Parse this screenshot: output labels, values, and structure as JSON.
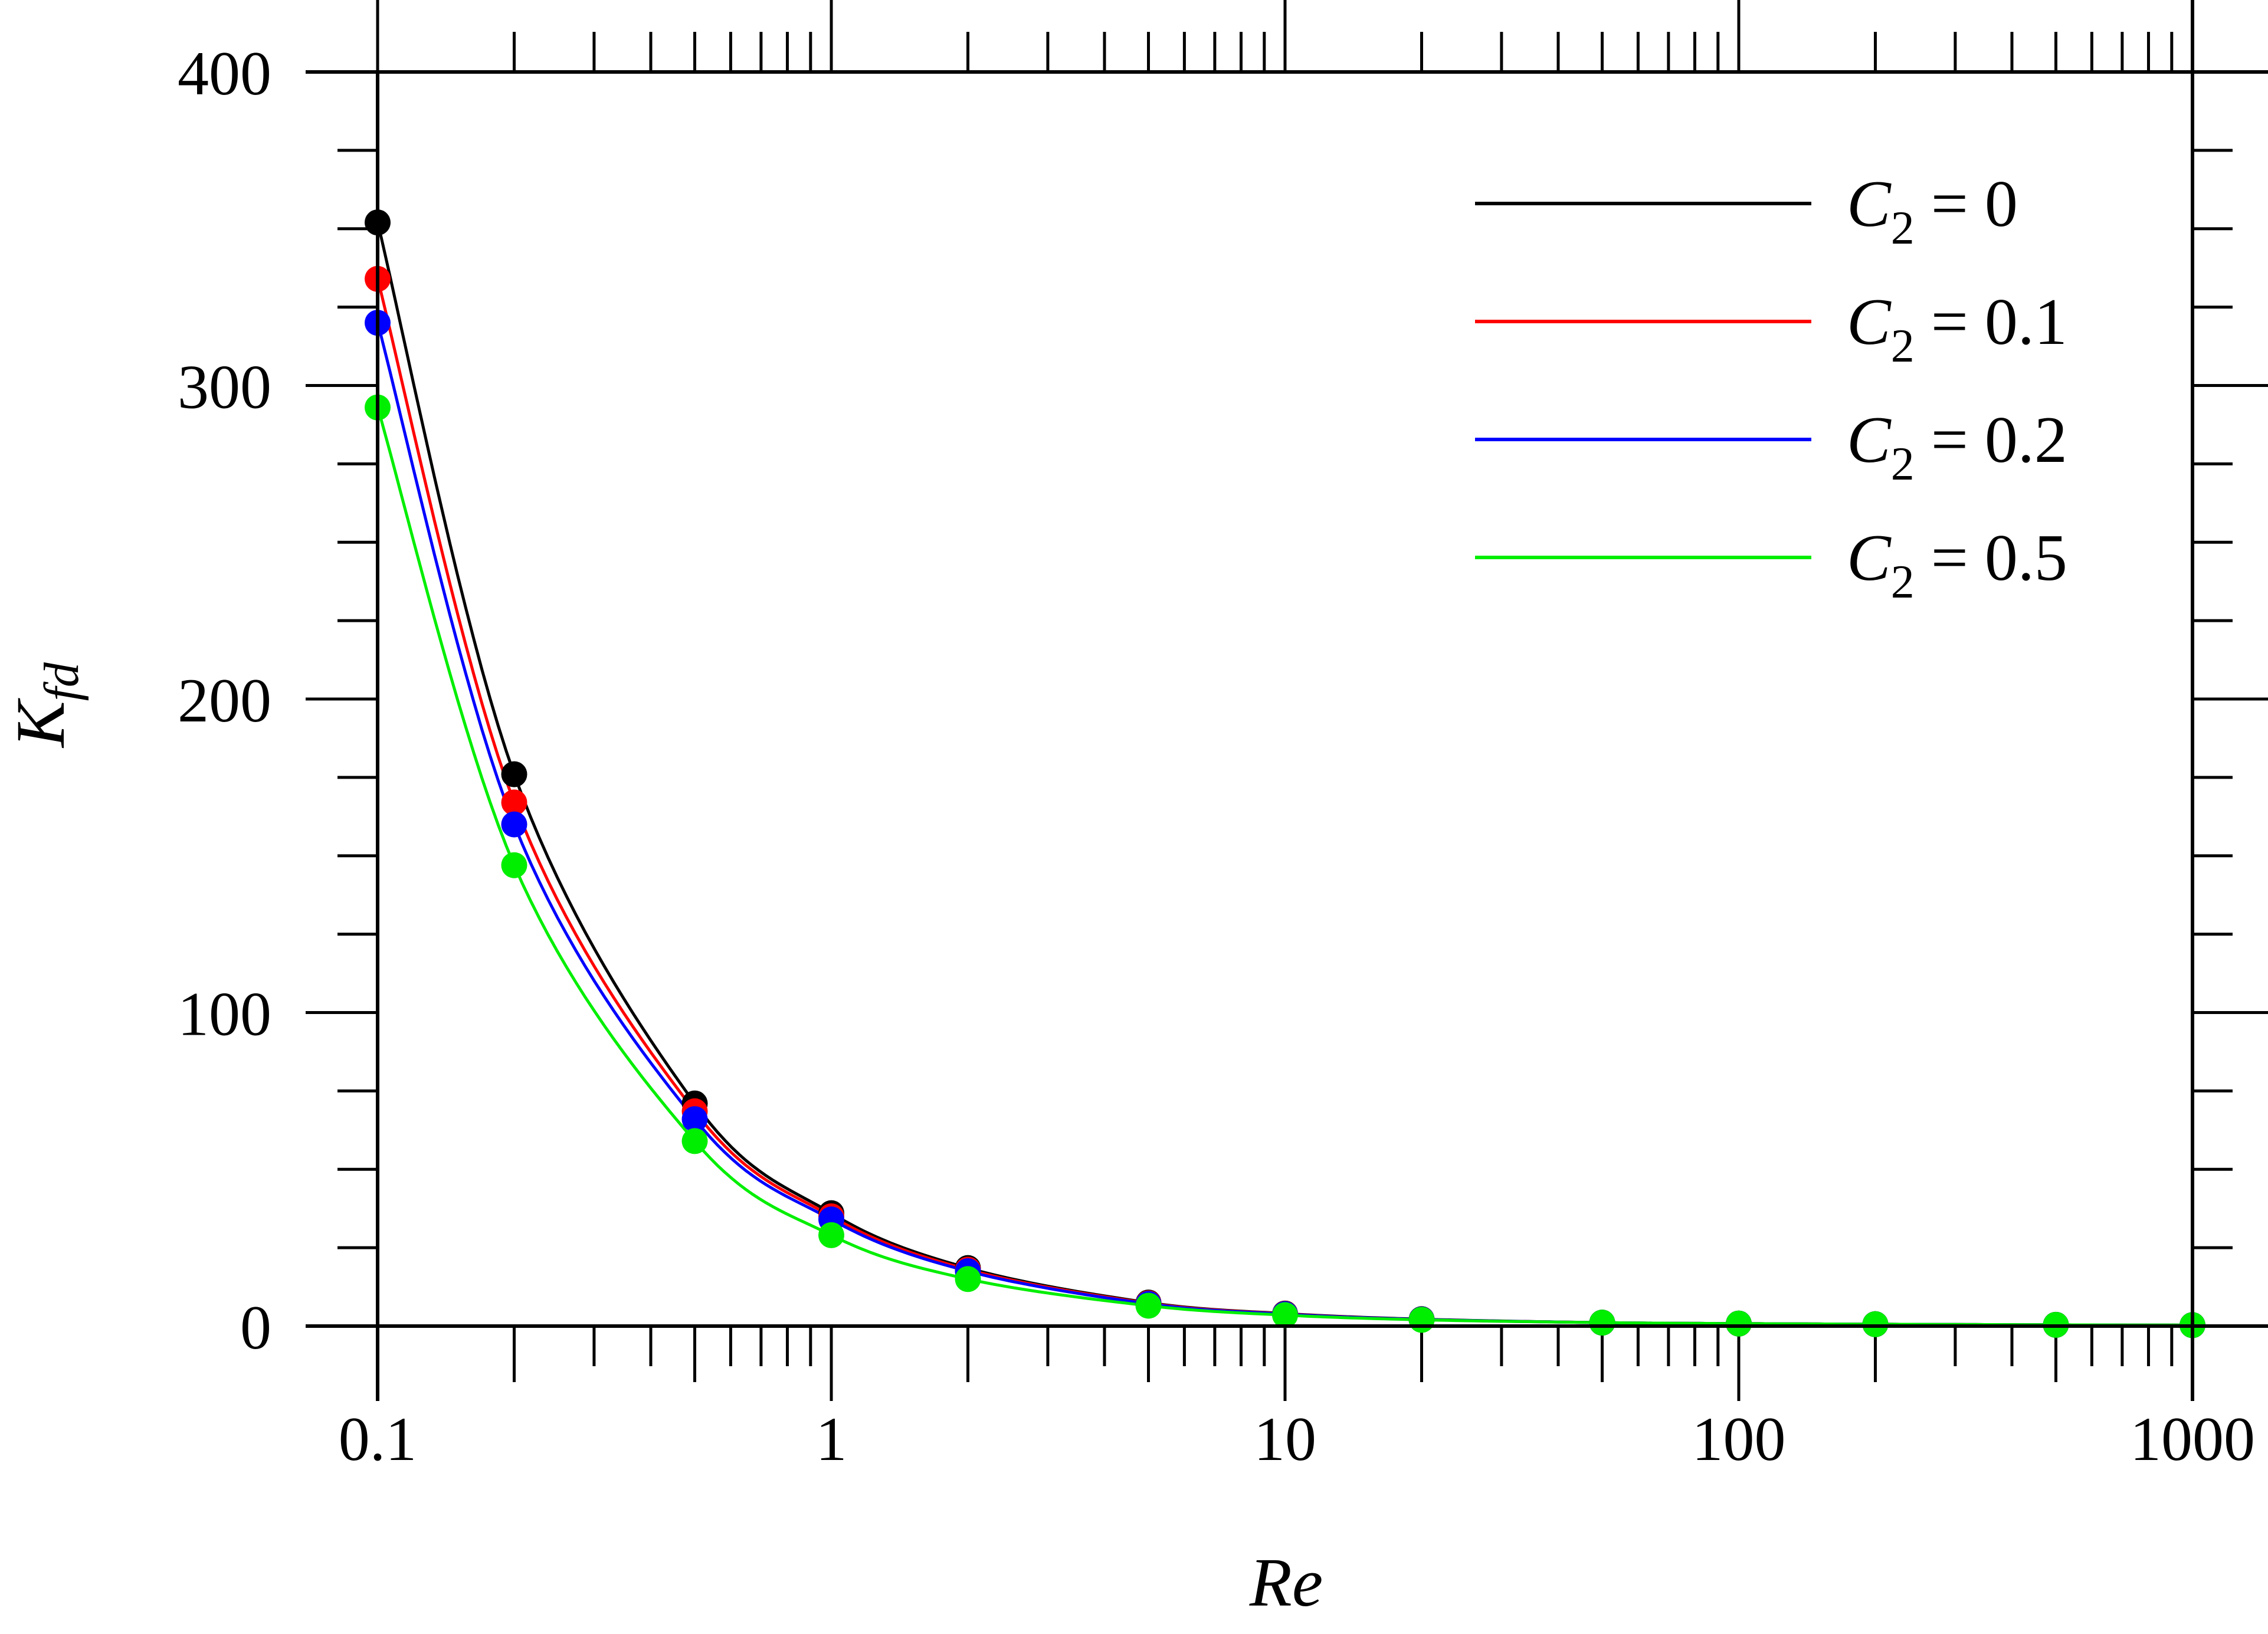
{
  "chart_data": {
    "type": "line",
    "xlabel": "Re",
    "ylabel": {
      "main": "K",
      "sub": "fd"
    },
    "x_scale": "log",
    "xlim": [
      0.1,
      1000
    ],
    "ylim": [
      0,
      400
    ],
    "x_tick_labels": [
      "0.1",
      "1",
      "10",
      "100",
      "1000"
    ],
    "y_tick_labels": [
      "0",
      "100",
      "200",
      "300",
      "400"
    ],
    "grid": false,
    "legend_position": "top-right",
    "series": [
      {
        "name": "C2 = 0",
        "legend": {
          "main": "C",
          "sub": "2",
          "rest": " = 0"
        },
        "color": "#000000",
        "points": [
          [
            0.1,
            352
          ],
          [
            0.2,
            176
          ],
          [
            0.5,
            71
          ],
          [
            1,
            36
          ],
          [
            2,
            18.5
          ],
          [
            5,
            7.5
          ],
          [
            10,
            4
          ],
          [
            20,
            2.2
          ],
          [
            50,
            1.1
          ],
          [
            100,
            0.8
          ],
          [
            200,
            0.6
          ],
          [
            500,
            0.4
          ],
          [
            1000,
            0.3
          ]
        ]
      },
      {
        "name": "C2 = 0.1",
        "legend": {
          "main": "C",
          "sub": "2",
          "rest": " = 0.1"
        },
        "color": "#ff0000",
        "points": [
          [
            0.1,
            334
          ],
          [
            0.2,
            167
          ],
          [
            0.5,
            68.5
          ],
          [
            1,
            35
          ],
          [
            2,
            18
          ],
          [
            5,
            7.3
          ],
          [
            10,
            3.9
          ],
          [
            20,
            2.1
          ],
          [
            50,
            1.1
          ],
          [
            100,
            0.8
          ],
          [
            200,
            0.6
          ],
          [
            500,
            0.4
          ],
          [
            1000,
            0.3
          ]
        ]
      },
      {
        "name": "C2 = 0.2",
        "legend": {
          "main": "C",
          "sub": "2",
          "rest": " = 0.2"
        },
        "color": "#0000ff",
        "points": [
          [
            0.1,
            320
          ],
          [
            0.2,
            160
          ],
          [
            0.5,
            66
          ],
          [
            1,
            34
          ],
          [
            2,
            17.5
          ],
          [
            5,
            7.1
          ],
          [
            10,
            3.8
          ],
          [
            20,
            2.1
          ],
          [
            50,
            1.1
          ],
          [
            100,
            0.8
          ],
          [
            200,
            0.6
          ],
          [
            500,
            0.4
          ],
          [
            1000,
            0.3
          ]
        ]
      },
      {
        "name": "C2 = 0.5",
        "legend": {
          "main": "C",
          "sub": "2",
          "rest": " = 0.5"
        },
        "color": "#00ee00",
        "points": [
          [
            0.1,
            293
          ],
          [
            0.2,
            147
          ],
          [
            0.5,
            59
          ],
          [
            1,
            29
          ],
          [
            2,
            15
          ],
          [
            5,
            6.5
          ],
          [
            10,
            3.5
          ],
          [
            20,
            2
          ],
          [
            50,
            1.1
          ],
          [
            100,
            0.8
          ],
          [
            200,
            0.6
          ],
          [
            500,
            0.4
          ],
          [
            1000,
            0.3
          ]
        ]
      }
    ]
  }
}
